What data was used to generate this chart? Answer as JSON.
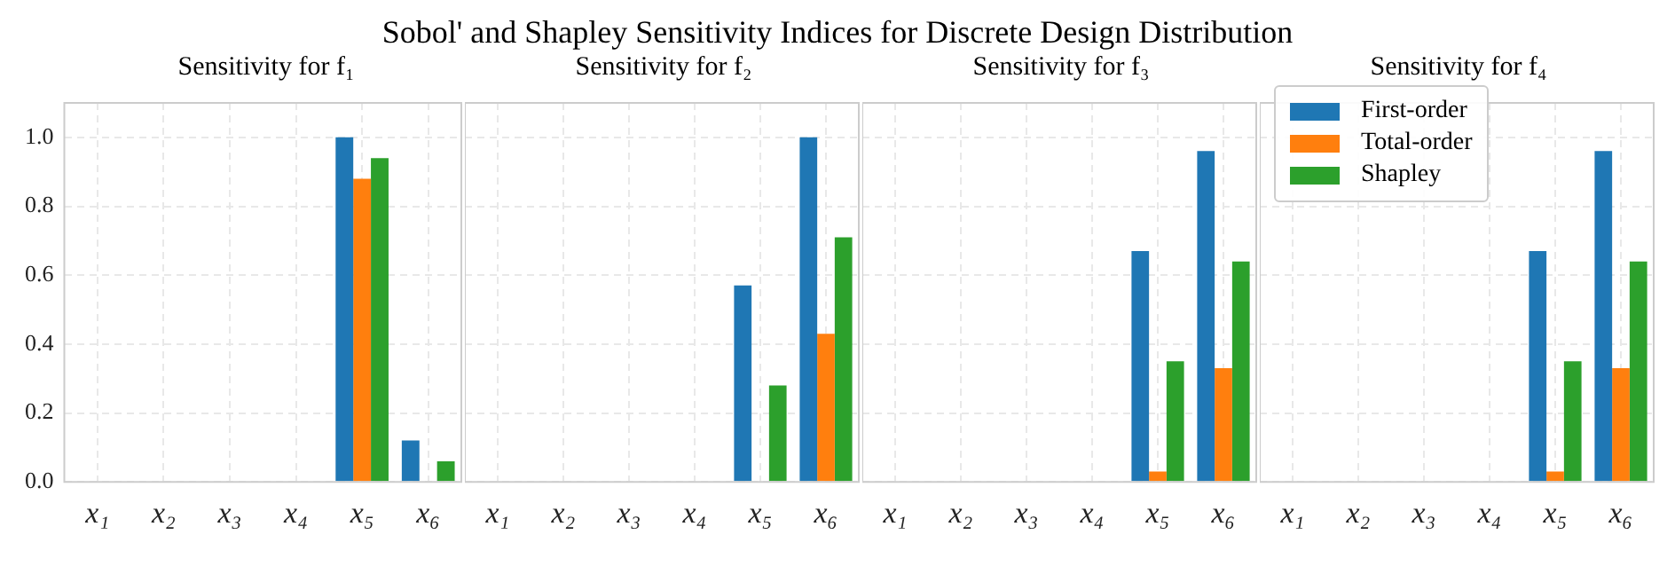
{
  "chart_data": [
    {
      "type": "bar",
      "title": "Sensitivity for f₁",
      "annotations": [
        "Sobol' and Shapley Sensitivity Indices for Discrete Design Distribution"
      ],
      "categories": [
        "x₁",
        "x₂",
        "x₃",
        "x₄",
        "x₅",
        "x₆"
      ],
      "series": [
        {
          "color": "#1f77b4",
          "values": [
            0,
            0,
            0,
            0,
            1.0,
            0.12
          ]
        },
        {
          "color": "#ff7f0e",
          "values": [
            0,
            0,
            0,
            0,
            0.88,
            0
          ]
        },
        {
          "color": "#2ca02c",
          "values": [
            0,
            0,
            0,
            0,
            0.94,
            0.06
          ]
        }
      ],
      "ylim": [
        0,
        1.1
      ],
      "yticks": [
        {
          "value": 0,
          "label": "0.0"
        },
        0.2,
        0.4,
        0.6,
        0.8,
        {
          "value": 1,
          "label": "1.0"
        }
      ],
      "grid": true
    },
    {
      "type": "bar",
      "title": "Sensitivity for f₂",
      "categories": [
        "x₁",
        "x₂",
        "x₃",
        "x₄",
        "x₅",
        "x₆"
      ],
      "series": [
        {
          "color": "#1f77b4",
          "values": [
            0,
            0,
            0,
            0,
            0.57,
            1.0
          ]
        },
        {
          "color": "#ff7f0e",
          "values": [
            0,
            0,
            0,
            0,
            0,
            0.43
          ]
        },
        {
          "color": "#2ca02c",
          "values": [
            0,
            0,
            0,
            0,
            0.28,
            0.71
          ]
        }
      ],
      "ylim": [
        0,
        1.1
      ],
      "yticks": [
        0,
        0.2,
        0.4,
        0.6,
        0.8,
        1
      ],
      "tick_labels": "x",
      "grid": true
    },
    {
      "type": "bar",
      "title": "Sensitivity for f₃",
      "categories": [
        "x₁",
        "x₂",
        "x₃",
        "x₄",
        "x₅",
        "x₆"
      ],
      "series": [
        {
          "color": "#1f77b4",
          "values": [
            0,
            0,
            0,
            0,
            0.67,
            0.96
          ]
        },
        {
          "color": "#ff7f0e",
          "values": [
            0,
            0,
            0,
            0,
            0.03,
            0.33
          ]
        },
        {
          "color": "#2ca02c",
          "values": [
            0,
            0,
            0,
            0,
            0.35,
            0.64
          ]
        }
      ],
      "ylim": [
        0,
        1.1
      ],
      "yticks": [
        0,
        0.2,
        0.4,
        0.6,
        0.8,
        1
      ],
      "tick_labels": "x",
      "grid": true
    },
    {
      "type": "bar",
      "title": "Sensitivity for f₄",
      "categories": [
        "x₁",
        "x₂",
        "x₃",
        "x₄",
        "x₅",
        "x₆"
      ],
      "series": [
        {
          "name": "First-order",
          "color": "#1f77b4",
          "values": [
            0,
            0,
            0,
            0,
            0.67,
            0.96
          ]
        },
        {
          "name": "Total-order",
          "color": "#ff7f0e",
          "values": [
            0,
            0,
            0,
            0,
            0.03,
            0.33
          ]
        },
        {
          "name": "Shapley",
          "color": "#2ca02c",
          "values": [
            0,
            0,
            0,
            0,
            0.35,
            0.64
          ]
        }
      ],
      "ylim": [
        0,
        1.1
      ],
      "yticks": [
        0,
        0.2,
        0.4,
        0.6,
        0.8,
        1
      ],
      "tick_labels": "x",
      "grid": true,
      "legend": "top left"
    }
  ]
}
